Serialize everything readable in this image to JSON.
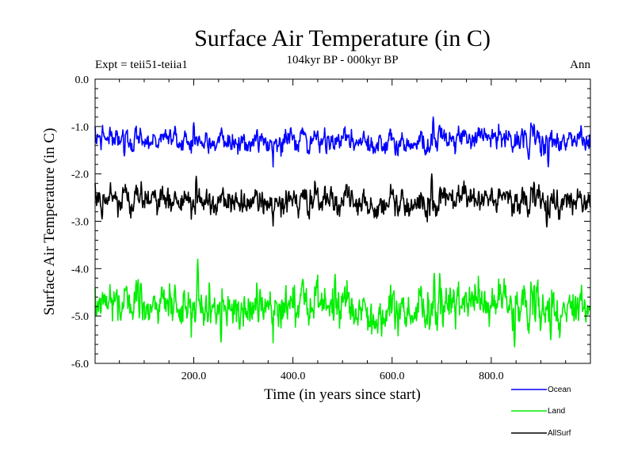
{
  "chart_data": {
    "type": "line",
    "title": "Surface Air Temperature (in C)",
    "subtitle": "104kyr BP - 000kyr BP",
    "annotation_left": "Expt = teii51-teiia1",
    "annotation_right": "Ann",
    "xlabel": "Time (in years since start)",
    "ylabel": "Surface Air Temperature (in C)",
    "xlim": [
      1,
      1000
    ],
    "ylim": [
      -6.0,
      0.0
    ],
    "x_ticks": [
      200,
      400,
      600,
      800
    ],
    "x_tick_labels": [
      "200.0",
      "400.0",
      "600.0",
      "800.0"
    ],
    "y_ticks": [
      0,
      -1,
      -2,
      -3,
      -4,
      -5,
      -6
    ],
    "y_tick_labels": [
      "0.0",
      "-1.0",
      "-2.0",
      "-3.0",
      "-4.0",
      "-5.0",
      "-6.0"
    ],
    "grid": false,
    "legend_position": "bottom-right, outside plot",
    "n_points": 1000,
    "series": [
      {
        "name": "Ocean",
        "color": "#0000ff",
        "mean": -1.3,
        "stdev": 0.13,
        "range": [
          -1.85,
          -0.78
        ],
        "peaks": [
          {
            "x": 683,
            "y": -0.8
          },
          {
            "x": 200,
            "y": -0.92
          }
        ],
        "troughs": [
          {
            "x": 915,
            "y": -1.85
          },
          {
            "x": 60,
            "y": -1.62
          }
        ]
      },
      {
        "name": "Land",
        "color": "#00ee00",
        "mean": -4.8,
        "stdev": 0.22,
        "range": [
          -5.65,
          -3.8
        ],
        "peaks": [
          {
            "x": 208,
            "y": -3.8
          },
          {
            "x": 685,
            "y": -4.1
          },
          {
            "x": 485,
            "y": -4.12
          }
        ],
        "troughs": [
          {
            "x": 847,
            "y": -5.65
          },
          {
            "x": 255,
            "y": -5.55
          },
          {
            "x": 920,
            "y": -5.5
          }
        ]
      },
      {
        "name": "AllSurf",
        "color": "#000000",
        "mean": -2.57,
        "stdev": 0.15,
        "range": [
          -3.15,
          -2.0
        ],
        "peaks": [
          {
            "x": 680,
            "y": -2.0
          },
          {
            "x": 205,
            "y": -2.05
          }
        ],
        "troughs": [
          {
            "x": 912,
            "y": -3.12
          },
          {
            "x": 15,
            "y": -2.95
          }
        ]
      }
    ]
  }
}
